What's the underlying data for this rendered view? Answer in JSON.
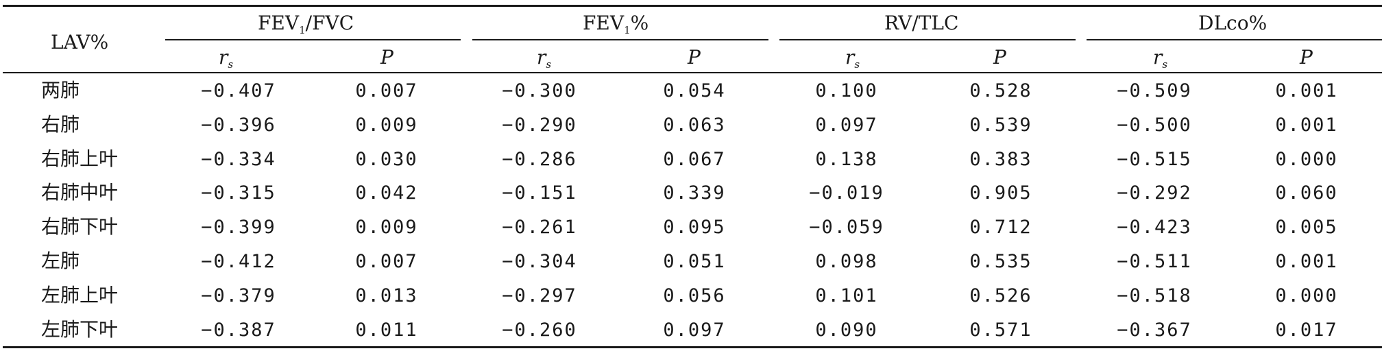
{
  "table": {
    "corner_header": "LAV%",
    "groups": [
      {
        "name_main": "FEV",
        "name_sub": "1",
        "name_rest": "/FVC"
      },
      {
        "name_main": "FEV",
        "name_sub": "1",
        "name_rest": "%"
      },
      {
        "name_main": "RV/TLC",
        "name_sub": "",
        "name_rest": ""
      },
      {
        "name_main": "DLco%",
        "name_sub": "",
        "name_rest": ""
      }
    ],
    "subheaders": {
      "rs_main": "r",
      "rs_sub": "s",
      "p": "P"
    },
    "rows": [
      {
        "label": "两肺",
        "values": [
          "−0.407",
          "0.007",
          "−0.300",
          "0.054",
          "0.100",
          "0.528",
          "−0.509",
          "0.001"
        ]
      },
      {
        "label": "右肺",
        "values": [
          "−0.396",
          "0.009",
          "−0.290",
          "0.063",
          "0.097",
          "0.539",
          "−0.500",
          "0.001"
        ]
      },
      {
        "label": "右肺上叶",
        "values": [
          "−0.334",
          "0.030",
          "−0.286",
          "0.067",
          "0.138",
          "0.383",
          "−0.515",
          "0.000"
        ]
      },
      {
        "label": "右肺中叶",
        "values": [
          "−0.315",
          "0.042",
          "−0.151",
          "0.339",
          "−0.019",
          "0.905",
          "−0.292",
          "0.060"
        ]
      },
      {
        "label": "右肺下叶",
        "values": [
          "−0.399",
          "0.009",
          "−0.261",
          "0.095",
          "−0.059",
          "0.712",
          "−0.423",
          "0.005"
        ]
      },
      {
        "label": "左肺",
        "values": [
          "−0.412",
          "0.007",
          "−0.304",
          "0.051",
          "0.098",
          "0.535",
          "−0.511",
          "0.001"
        ]
      },
      {
        "label": "左肺上叶",
        "values": [
          "−0.379",
          "0.013",
          "−0.297",
          "0.056",
          "0.101",
          "0.526",
          "−0.518",
          "0.000"
        ]
      },
      {
        "label": "左肺下叶",
        "values": [
          "−0.387",
          "0.011",
          "−0.260",
          "0.097",
          "0.090",
          "0.571",
          "−0.367",
          "0.017"
        ]
      }
    ]
  }
}
